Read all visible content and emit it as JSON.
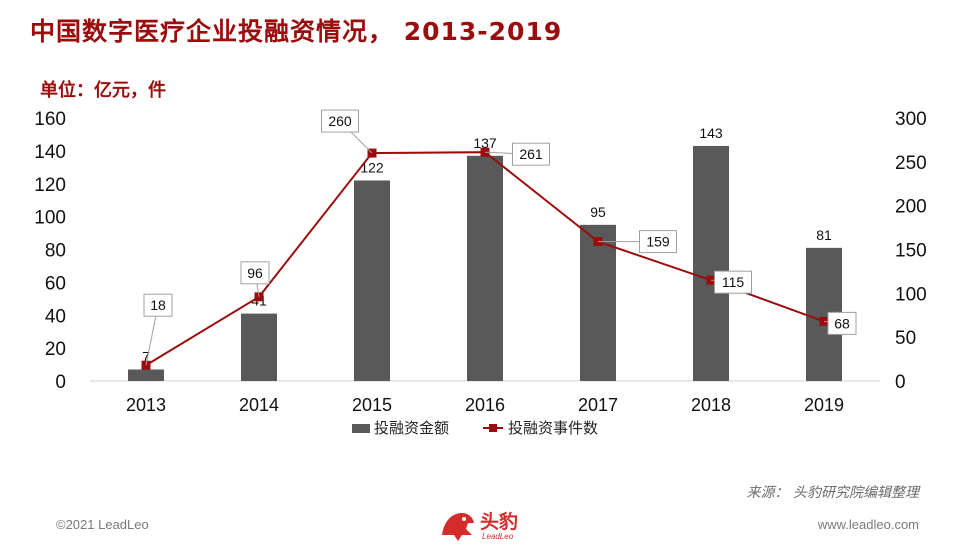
{
  "page": {
    "title": "中国数字医疗企业投融资情况， 2013-2019",
    "unit": "单位：亿元，件",
    "source": "来源： 头豹研究院编辑整理",
    "copyright": "©2021 LeadLeo",
    "website": "www.leadleo.com",
    "logo_text": "头豹",
    "logo_sub": "LeadLeo"
  },
  "colors": {
    "title": "#9b0d0d",
    "bar": "#595959",
    "line": "#9b0d0d",
    "marker": "#9b0d0d"
  },
  "chart_data": {
    "type": "bar",
    "categories": [
      "2013",
      "2014",
      "2015",
      "2016",
      "2017",
      "2018",
      "2019"
    ],
    "series": [
      {
        "name": "投融资金额",
        "type": "bar",
        "axis": "left",
        "values": [
          7,
          41,
          122,
          137,
          95,
          143,
          81
        ]
      },
      {
        "name": "投融资事件数",
        "type": "line",
        "axis": "right",
        "values": [
          18,
          96,
          260,
          261,
          159,
          115,
          68
        ]
      }
    ],
    "ylim_left": [
      0,
      160
    ],
    "yticks_left": [
      0,
      20,
      40,
      60,
      80,
      100,
      120,
      140,
      160
    ],
    "ylim_right": [
      0,
      300
    ],
    "yticks_right": [
      0,
      50,
      100,
      150,
      200,
      250,
      300
    ],
    "grid": false,
    "legend": "bottom"
  }
}
